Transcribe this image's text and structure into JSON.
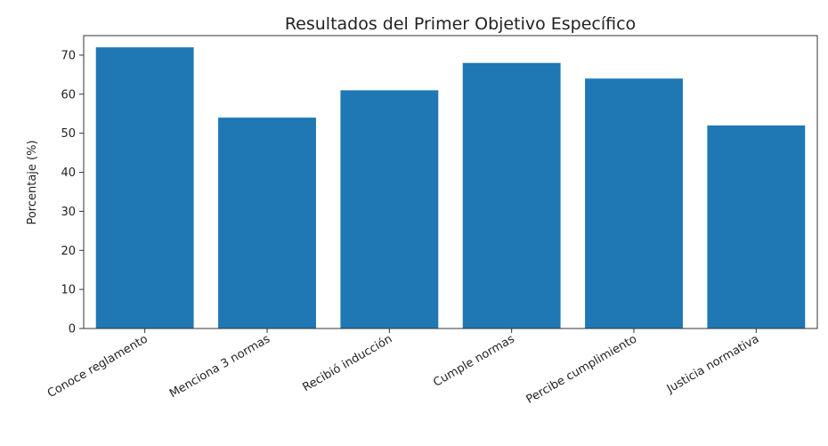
{
  "chart_data": {
    "type": "bar",
    "title": "Resultados del Primer Objetivo Específico",
    "xlabel": "",
    "ylabel": "Porcentaje (%)",
    "categories": [
      "Conoce reglamento",
      "Menciona 3 normas",
      "Recibió inducción",
      "Cumple normas",
      "Percibe cumplimiento",
      "Justicia normativa"
    ],
    "values": [
      72,
      54,
      61,
      68,
      64,
      52
    ],
    "ylim": [
      0,
      75
    ],
    "yticks": [
      0,
      10,
      20,
      30,
      40,
      50,
      60,
      70
    ],
    "grid": false,
    "bar_color": "#1f77b4"
  }
}
